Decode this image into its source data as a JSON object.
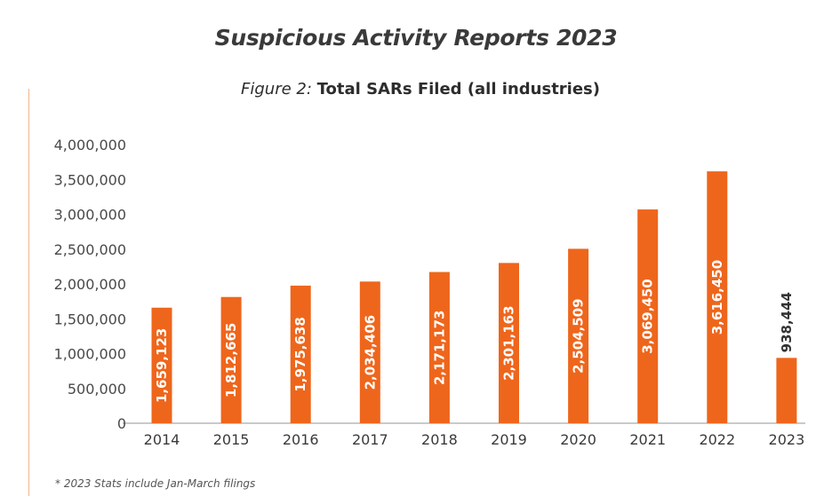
{
  "header": {
    "title": "Suspicious Activity Reports 2023",
    "subtitle_lead": "Figure 2:",
    "subtitle_main": "Total SARs Filed (all industries)"
  },
  "footnote": "* 2023 Stats include Jan-March filings",
  "colors": {
    "bar": "#ee661c",
    "axis": "#b9b9b9",
    "inside_label": "#ffffff",
    "outside_label": "#333333"
  },
  "chart_data": {
    "type": "bar",
    "title": "Total SARs Filed (all industries)",
    "xlabel": "",
    "ylabel": "",
    "categories": [
      "2014",
      "2015",
      "2016",
      "2017",
      "2018",
      "2019",
      "2020",
      "2021",
      "2022",
      "2023"
    ],
    "values": [
      1659123,
      1812665,
      1975638,
      2034406,
      2171173,
      2301163,
      2504509,
      3069450,
      3616450,
      938444
    ],
    "data_labels": [
      "1,659,123",
      "1,812,665",
      "1,975,638",
      "2,034,406",
      "2,171,173",
      "2,301,163",
      "2,504,509",
      "3,069,450",
      "3,616,450",
      "938,444"
    ],
    "ylim": [
      0,
      4000000
    ],
    "yticks": [
      0,
      500000,
      1000000,
      1500000,
      2000000,
      2500000,
      3000000,
      3500000,
      4000000
    ],
    "ytick_labels": [
      "0",
      "500,000",
      "1,000,000",
      "1,500,000",
      "2,000,000",
      "2,500,000",
      "3,000,000",
      "3,500,000",
      "4,000,000"
    ],
    "grid": false,
    "legend": "none"
  }
}
